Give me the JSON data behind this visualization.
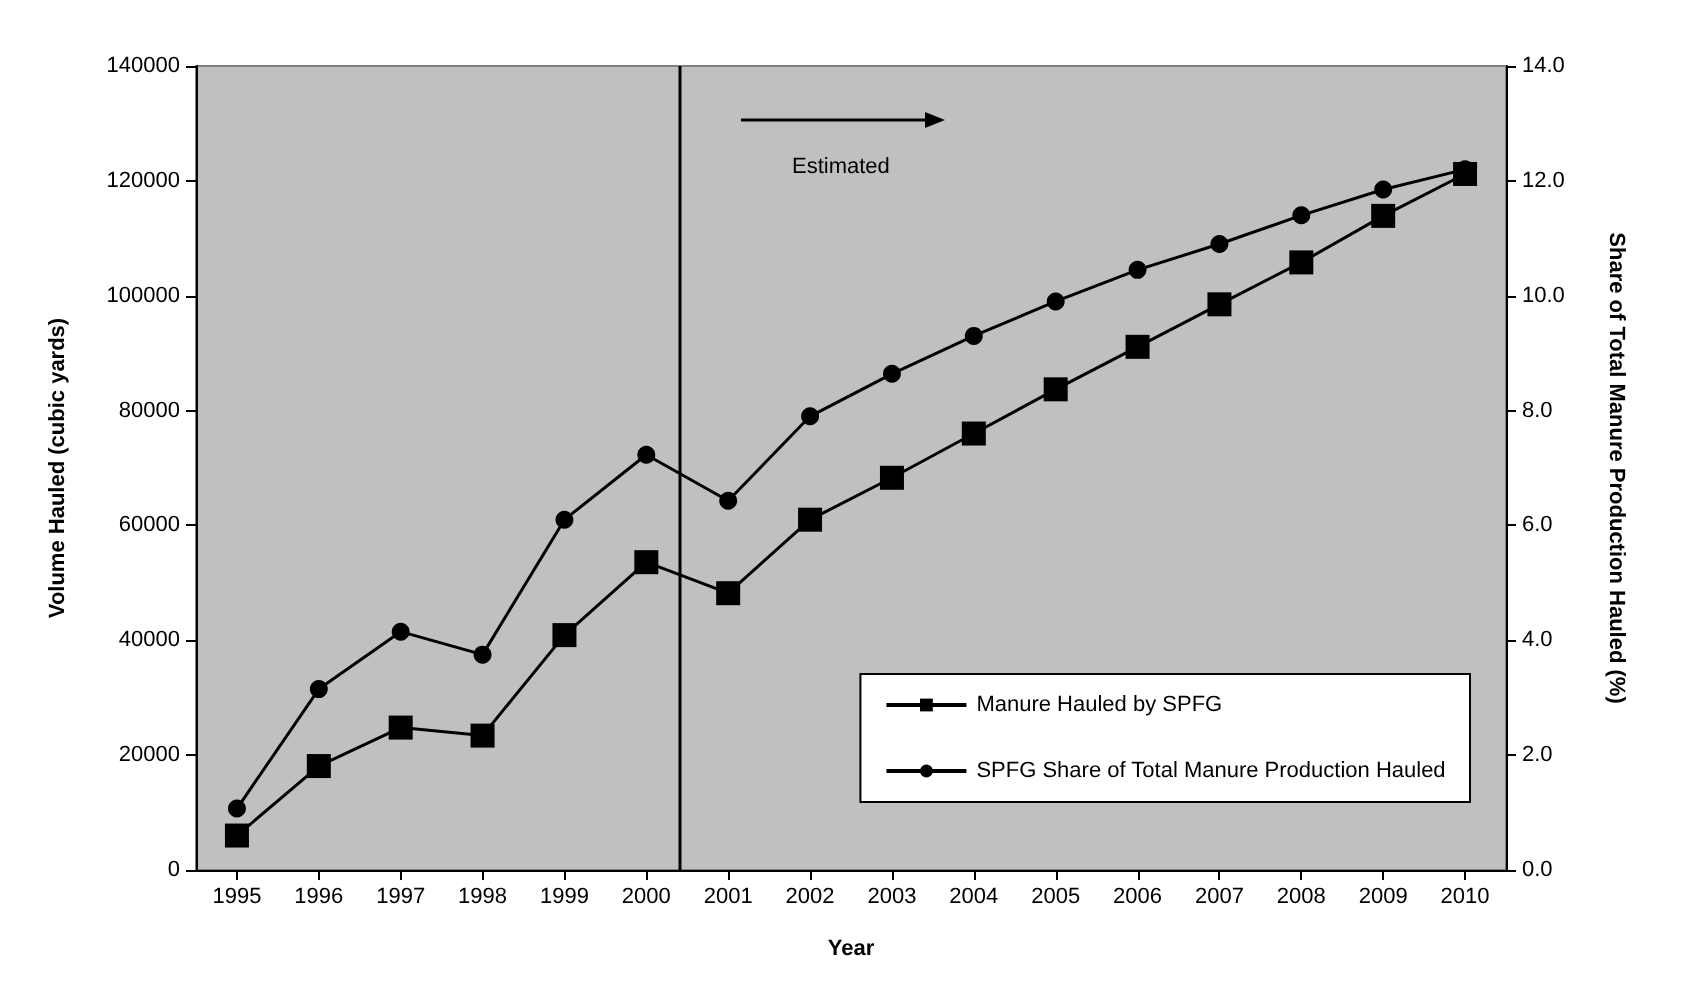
{
  "chart_data": {
    "type": "line",
    "xlabel": "Year",
    "ylabel": "Volume Hauled (cubic yards)",
    "y2label": "Share of Total Manure Production Hauled (%)",
    "x": [
      1995,
      1996,
      1997,
      1998,
      1999,
      2000,
      2001,
      2002,
      2003,
      2004,
      2005,
      2006,
      2007,
      2008,
      2009,
      2010
    ],
    "xlim": [
      1994.5,
      2010.5
    ],
    "xticks": [
      1995,
      1996,
      1997,
      1998,
      1999,
      2000,
      2001,
      2002,
      2003,
      2004,
      2005,
      2006,
      2007,
      2008,
      2009,
      2010
    ],
    "ylim": [
      0,
      140000
    ],
    "yticks": [
      0,
      20000,
      40000,
      60000,
      80000,
      100000,
      120000,
      140000
    ],
    "y2lim": [
      0,
      14
    ],
    "y2ticks": [
      {
        "value": 0,
        "label": "0.0"
      },
      {
        "value": 2,
        "label": "2.0"
      },
      {
        "value": 4,
        "label": "4.0"
      },
      {
        "value": 6,
        "label": "6.0"
      },
      {
        "value": 8,
        "label": "8.0"
      },
      {
        "value": 10,
        "label": "10.0"
      },
      {
        "value": 12,
        "label": "12.0"
      },
      {
        "value": 14,
        "label": "14.0"
      }
    ],
    "series": [
      {
        "name": "Manure Hauled by SPFG",
        "color": "#000000",
        "marker": "square",
        "values": [
          6000,
          18100,
          24800,
          23400,
          40900,
          53600,
          48200,
          61000,
          68300,
          76000,
          83700,
          91100,
          98500,
          105800,
          113900,
          121200
        ]
      },
      {
        "name": "SPFG Share of Total Manure Production Hauled",
        "color": "#000000",
        "marker": "circle",
        "axis": "y2",
        "values": [
          1.07,
          3.15,
          4.15,
          3.75,
          6.1,
          7.23,
          6.43,
          7.9,
          8.64,
          9.3,
          9.9,
          10.45,
          10.9,
          11.4,
          11.85,
          12.2
        ]
      }
    ],
    "ref_lines": [
      {
        "axis": "x",
        "value": 2000.4,
        "label": null,
        "color": "#000000"
      }
    ],
    "annotations": [
      "Estimated"
    ],
    "grid": false,
    "legend": "bottom right",
    "line_style": "solid"
  }
}
